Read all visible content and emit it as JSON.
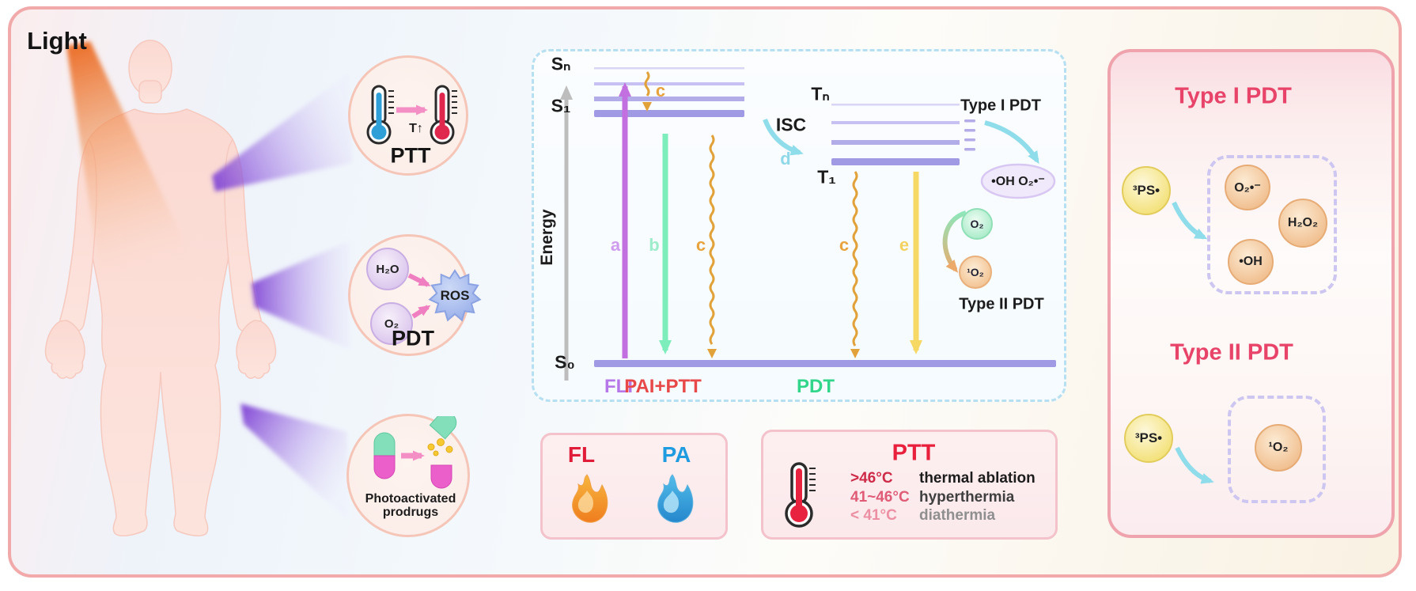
{
  "light_label": "Light",
  "callout_ptt": {
    "title": "PTT",
    "temp_change": "T↑"
  },
  "callout_pdt": {
    "title": "PDT",
    "input1": "H₂O",
    "input2": "O₂",
    "output": "ROS"
  },
  "callout_prodrugs": {
    "line1": "Photoactivated",
    "line2": "prodrugs"
  },
  "jablonski": {
    "energy_label": "Energy",
    "s_n": "Sₙ",
    "s_1": "S₁",
    "s_0": "S₀",
    "t_n": "Tₙ",
    "t_1": "T₁",
    "isc": "ISC",
    "a": "a",
    "b": "b",
    "c": "c",
    "d": "d",
    "e": "e",
    "type1_title": "Type I PDT",
    "type1_products": "•OH O₂•⁻",
    "oxygen": "O₂",
    "singlet_oxygen": "¹O₂",
    "type2_title": "Type II PDT",
    "fli_label": "FLI",
    "pai_ptt_label": "PAI+PTT",
    "pdt_label": "PDT"
  },
  "fl_pa_box": {
    "fl": "FL",
    "pa": "PA"
  },
  "ptt_box": {
    "title": "PTT",
    "rows": [
      {
        "temp": ">46°C",
        "effect": "thermal ablation"
      },
      {
        "temp": "41~46°C",
        "effect": "hyperthermia"
      },
      {
        "temp": "< 41°C",
        "effect": "diathermia"
      }
    ]
  },
  "right_panel": {
    "type1_title": "Type I PDT",
    "type1_source": "³PS•",
    "type1_products": [
      "O₂•⁻",
      "H₂O₂",
      "•OH"
    ],
    "type2_title": "Type II PDT",
    "type2_source": "³PS•",
    "type2_product": "¹O₂"
  },
  "colors": {
    "frame_pink": "#f1a9a9",
    "accent_rose": "#e84368",
    "level_purple": "#a09ae4",
    "arrow_a_purple": "#c26fe0",
    "arrow_b_green": "#7deebb",
    "arrow_c_orange": "#e2a23a",
    "arrow_d_cyan": "#7fd8e8",
    "arrow_e_yellow": "#f6d865",
    "fl_red": "#e01c38",
    "pa_blue": "#1f9ce0",
    "fli_purple": "#b678e8",
    "pai_ptt_red": "#e84848",
    "pdt_green": "#31d68a",
    "beam_purple": "#7f42d4",
    "beam_orange": "#ec6f28"
  }
}
